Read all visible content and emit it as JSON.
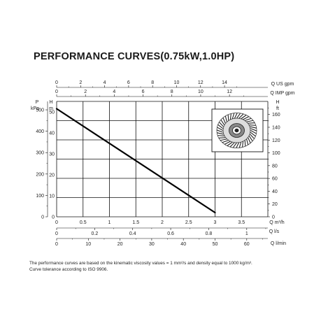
{
  "page_title": "PERFORMANCE CURVES(0.75kW,1.0HP)",
  "footnote": {
    "line1": "The performance curves are based on the kinematic viscosity values = 1 mm²/s and density equal to 1000 kg/m³.",
    "line2": "Curve tolerance according to ISO 9906."
  },
  "chart_data": {
    "type": "line",
    "title": "PERFORMANCE CURVES(0.75kW,1.0HP)",
    "grid": true,
    "x_primary": {
      "label": "Q m³/h",
      "range": [
        0,
        4.0
      ],
      "ticks": [
        0,
        0.5,
        1,
        1.5,
        2.0,
        2.5,
        3.0,
        3.5
      ]
    },
    "y_primary": {
      "label": "H m",
      "unit_label": "m",
      "axis_letter": "H",
      "range": [
        0,
        55
      ],
      "ticks": [
        0,
        10,
        20,
        30,
        40,
        50
      ]
    },
    "series": [
      {
        "x": [
          0,
          3.0
        ],
        "y": [
          51.5,
          2.0
        ]
      }
    ],
    "secondary_axes": {
      "top_us_gpm": {
        "label": "Q US gpm",
        "ticks": [
          0,
          2,
          4,
          6,
          8,
          10,
          12,
          14
        ]
      },
      "top_imp_gpm": {
        "label": "Q IMP gpm",
        "ticks": [
          0,
          2,
          4,
          6,
          8,
          10,
          12
        ]
      },
      "left_kpa": {
        "axis_letter": "P",
        "label": "kPa",
        "ticks": [
          0,
          100,
          200,
          300,
          400,
          500
        ]
      },
      "right_ft": {
        "axis_letter": "H",
        "label": "ft",
        "ticks": [
          0,
          20,
          40,
          60,
          80,
          100,
          120,
          140,
          160
        ]
      },
      "bottom_ls": {
        "label": "Q l/s",
        "ticks": [
          0,
          0.2,
          0.4,
          0.6,
          0.8,
          1.0
        ]
      },
      "bottom_lmin": {
        "label": "Q l/min",
        "ticks": [
          0,
          10,
          20,
          30,
          40,
          50,
          60
        ]
      }
    }
  }
}
